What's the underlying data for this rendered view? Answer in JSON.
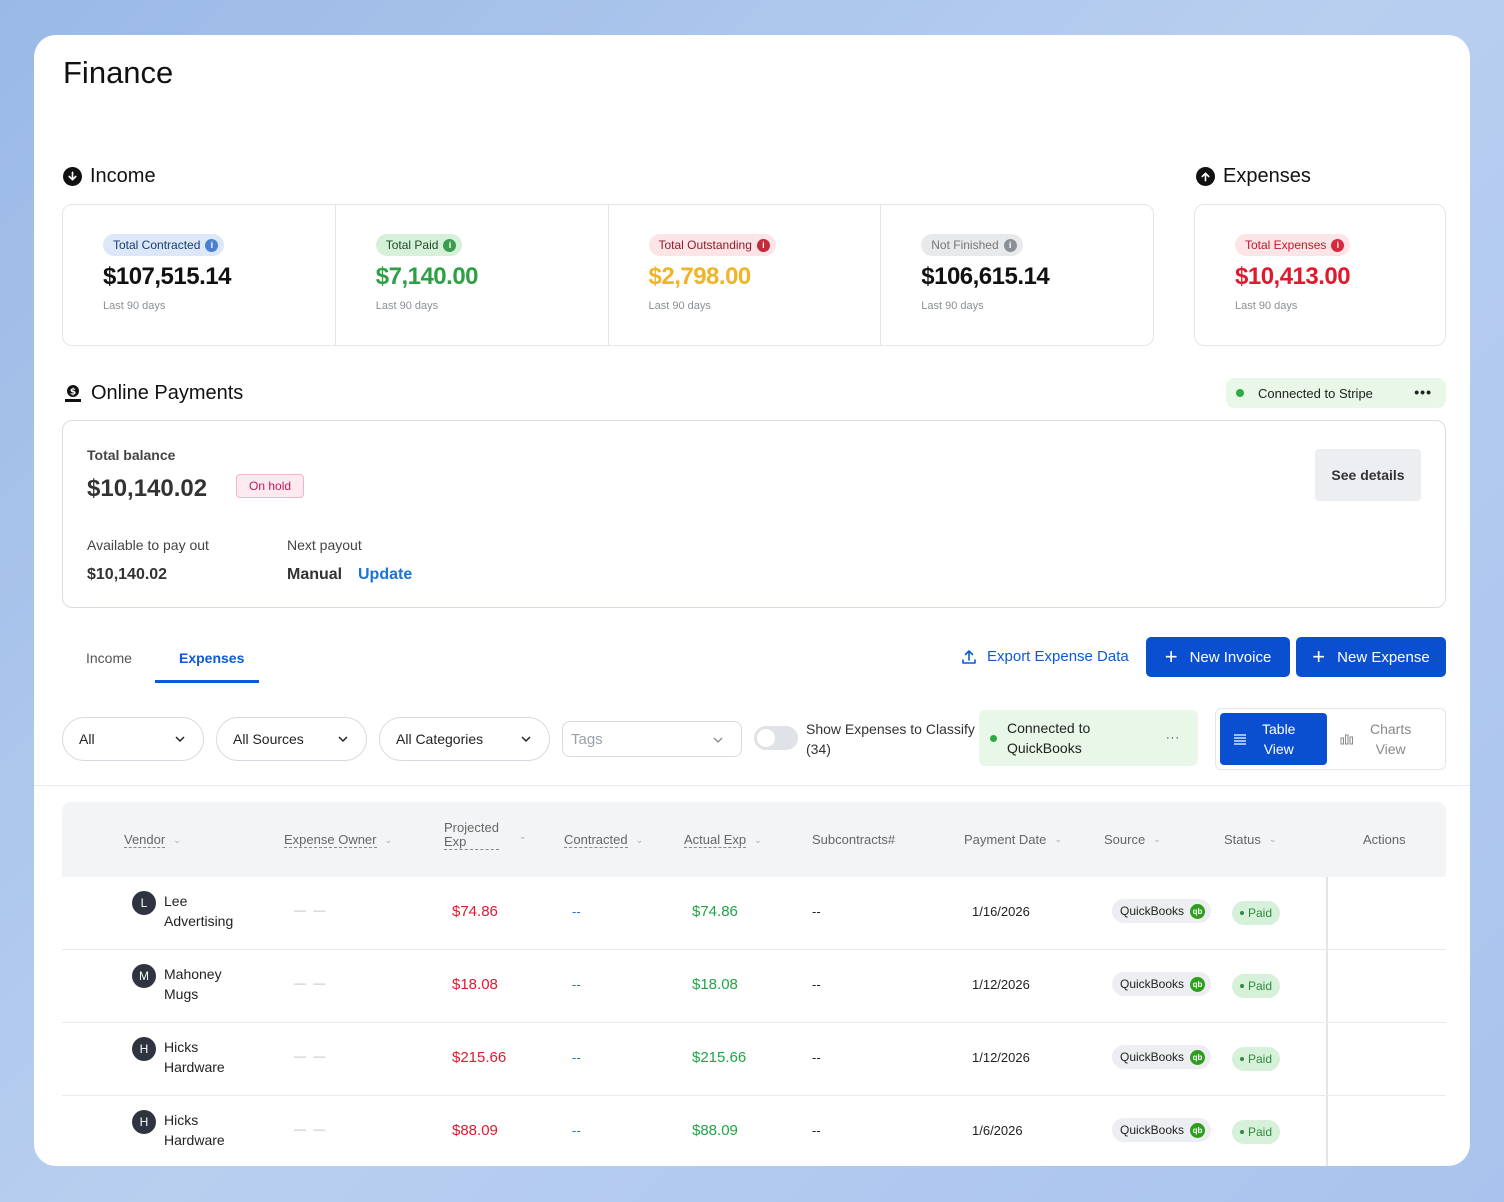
{
  "page_title": "Finance",
  "income": {
    "title": "Income",
    "stats": [
      {
        "label": "Total Contracted",
        "amount": "$107,515.14",
        "period": "Last 90 days",
        "pill_bg": "#dce8f8",
        "pill_color": "#1a3c6e",
        "icon_bg": "#4a7fd1",
        "amount_color": "#111111"
      },
      {
        "label": "Total Paid",
        "amount": "$7,140.00",
        "period": "Last 90 days",
        "pill_bg": "#d7f0d9",
        "pill_color": "#1d4d26",
        "icon_bg": "#3a9e4e",
        "amount_color": "#2ea043"
      },
      {
        "label": "Total Outstanding",
        "amount": "$2,798.00",
        "period": "Last 90 days",
        "pill_bg": "#fde4e6",
        "pill_color": "#8c1d2a",
        "icon_bg": "#c62a3a",
        "amount_color": "#f0b429"
      },
      {
        "label": "Not Finished",
        "amount": "$106,615.14",
        "period": "Last 90 days",
        "pill_bg": "#e8e9eb",
        "pill_color": "#777777",
        "icon_bg": "#8a8f98",
        "amount_color": "#111111"
      }
    ]
  },
  "expenses": {
    "title": "Expenses",
    "stat": {
      "label": "Total Expenses",
      "amount": "$10,413.00",
      "period": "Last 90 days",
      "pill_bg": "#fde4e6",
      "pill_color": "#c0182b",
      "icon_bg": "#d42a3c",
      "amount_color": "#e0192e"
    }
  },
  "online_payments": {
    "title": "Online Payments",
    "stripe_status": "Connected to Stripe",
    "more": "•••",
    "total_balance_label": "Total balance",
    "total_balance": "$10,140.02",
    "hold_badge": "On hold",
    "see_details": "See details",
    "available_label": "Available to pay out",
    "available_value": "$10,140.02",
    "next_payout_label": "Next payout",
    "next_payout_value": "Manual",
    "update_link": "Update"
  },
  "tabs": [
    {
      "label": "Income",
      "active": false
    },
    {
      "label": "Expenses",
      "active": true
    }
  ],
  "toolbar": {
    "export": "Export Expense Data",
    "new_invoice": "New Invoice",
    "new_expense": "New Expense"
  },
  "filters": {
    "status": "All",
    "sources": "All Sources",
    "categories": "All Categories",
    "tags_placeholder": "Tags",
    "classify_label_1": "Show Expenses to Classify",
    "classify_label_2": "(34)",
    "quickbooks_line_1": "Connected to",
    "quickbooks_line_2": "QuickBooks",
    "quickbooks_more": "···",
    "table_view_1": "Table",
    "table_view_2": "View",
    "charts_view_1": "Charts",
    "charts_view_2": "View"
  },
  "table": {
    "headers": {
      "vendor": "Vendor",
      "owner": "Expense Owner",
      "projected_1": "Projected",
      "projected_2": "Exp",
      "contracted": "Contracted",
      "actual": "Actual Exp",
      "subcontracts": "Subcontracts#",
      "payment_date": "Payment Date",
      "source": "Source",
      "status": "Status",
      "actions": "Actions"
    },
    "rows": [
      {
        "initial": "L",
        "vendor_1": "Lee",
        "vendor_2": "Advertising",
        "owner": "— —",
        "projected": "$74.86",
        "contracted": "--",
        "actual": "$74.86",
        "subcontracts": "--",
        "date": "1/16/2026",
        "source": "QuickBooks",
        "status": "Paid"
      },
      {
        "initial": "M",
        "vendor_1": "Mahoney",
        "vendor_2": "Mugs",
        "owner": "— —",
        "projected": "$18.08",
        "contracted": "--",
        "actual": "$18.08",
        "subcontracts": "--",
        "date": "1/12/2026",
        "source": "QuickBooks",
        "status": "Paid"
      },
      {
        "initial": "H",
        "vendor_1": "Hicks",
        "vendor_2": "Hardware",
        "owner": "— —",
        "projected": "$215.66",
        "contracted": "--",
        "actual": "$215.66",
        "subcontracts": "--",
        "date": "1/12/2026",
        "source": "QuickBooks",
        "status": "Paid"
      },
      {
        "initial": "H",
        "vendor_1": "Hicks",
        "vendor_2": "Hardware",
        "owner": "— —",
        "projected": "$88.09",
        "contracted": "--",
        "actual": "$88.09",
        "subcontracts": "--",
        "date": "1/6/2026",
        "source": "QuickBooks",
        "status": "Paid"
      }
    ]
  },
  "icons": {
    "income": "arrow-down-circle-icon",
    "expenses": "arrow-up-circle-icon",
    "online_payments": "payment-hand-icon",
    "export": "upload-icon",
    "chevron": "chevron-down-icon"
  },
  "colors": {
    "primary": "#0b4fd1",
    "link": "#1a73d9",
    "red": "#e0192e",
    "green": "#1fa446"
  }
}
